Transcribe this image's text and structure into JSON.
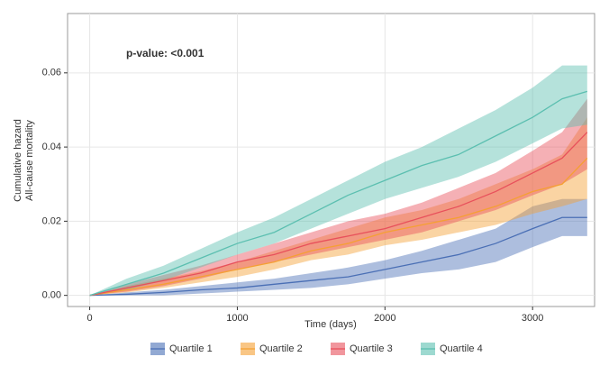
{
  "chart_data": {
    "type": "line",
    "annotation": "p-value: <0.001",
    "xlabel": "Time (days)",
    "ylabel": [
      "Cumulative hazard",
      "All-cause mortality"
    ],
    "xlim": [
      -150,
      3420
    ],
    "ylim": [
      -0.003,
      0.076
    ],
    "xticks": [
      0,
      1000,
      2000,
      3000
    ],
    "yticks": [
      {
        "value": 0,
        "label": "0.00"
      },
      {
        "value": 0.02,
        "label": "0.02"
      },
      {
        "value": 0.04,
        "label": "0.04"
      },
      {
        "value": 0.06,
        "label": "0.06"
      }
    ],
    "grid": true,
    "legend": "bottom",
    "x": [
      0,
      250,
      500,
      750,
      1000,
      1250,
      1500,
      1750,
      2000,
      2250,
      2500,
      2750,
      3000,
      3200,
      3370
    ],
    "series": [
      {
        "name": "Quartile 1",
        "color": "#4a6fb5",
        "values": [
          0,
          0.0003,
          0.0008,
          0.0015,
          0.002,
          0.003,
          0.004,
          0.005,
          0.007,
          0.009,
          0.011,
          0.014,
          0.018,
          0.021,
          0.021
        ],
        "lower": [
          0,
          0,
          0,
          0.0005,
          0.001,
          0.0015,
          0.002,
          0.003,
          0.0045,
          0.006,
          0.007,
          0.009,
          0.013,
          0.016,
          0.016
        ],
        "upper": [
          0,
          0.0008,
          0.0015,
          0.0025,
          0.0035,
          0.0045,
          0.006,
          0.0075,
          0.0095,
          0.012,
          0.015,
          0.018,
          0.024,
          0.026,
          0.026
        ]
      },
      {
        "name": "Quartile 2",
        "color": "#f5a033",
        "values": [
          0,
          0.0015,
          0.003,
          0.005,
          0.007,
          0.009,
          0.012,
          0.014,
          0.017,
          0.019,
          0.021,
          0.024,
          0.028,
          0.03,
          0.037
        ],
        "lower": [
          0,
          0.0008,
          0.002,
          0.0035,
          0.005,
          0.007,
          0.0095,
          0.011,
          0.0135,
          0.015,
          0.017,
          0.019,
          0.022,
          0.024,
          0.026
        ],
        "upper": [
          0,
          0.0025,
          0.0045,
          0.0065,
          0.009,
          0.012,
          0.015,
          0.018,
          0.021,
          0.023,
          0.026,
          0.03,
          0.034,
          0.038,
          0.048
        ]
      },
      {
        "name": "Quartile 3",
        "color": "#e8505b",
        "values": [
          0,
          0.002,
          0.004,
          0.006,
          0.009,
          0.011,
          0.014,
          0.016,
          0.018,
          0.021,
          0.024,
          0.028,
          0.033,
          0.037,
          0.044
        ],
        "lower": [
          0,
          0.001,
          0.0025,
          0.0045,
          0.007,
          0.009,
          0.011,
          0.013,
          0.015,
          0.017,
          0.02,
          0.023,
          0.027,
          0.03,
          0.034
        ],
        "upper": [
          0,
          0.003,
          0.0055,
          0.008,
          0.011,
          0.014,
          0.017,
          0.02,
          0.022,
          0.025,
          0.029,
          0.033,
          0.039,
          0.044,
          0.053
        ]
      },
      {
        "name": "Quartile 4",
        "color": "#5bbfb0",
        "values": [
          0,
          0.003,
          0.006,
          0.01,
          0.014,
          0.017,
          0.022,
          0.027,
          0.031,
          0.035,
          0.038,
          0.043,
          0.048,
          0.053,
          0.055
        ],
        "lower": [
          0,
          0.0015,
          0.004,
          0.0075,
          0.011,
          0.014,
          0.018,
          0.022,
          0.026,
          0.029,
          0.032,
          0.036,
          0.041,
          0.045,
          0.046
        ],
        "upper": [
          0,
          0.0045,
          0.008,
          0.0125,
          0.017,
          0.021,
          0.026,
          0.031,
          0.036,
          0.04,
          0.045,
          0.05,
          0.056,
          0.062,
          0.062
        ]
      }
    ]
  }
}
